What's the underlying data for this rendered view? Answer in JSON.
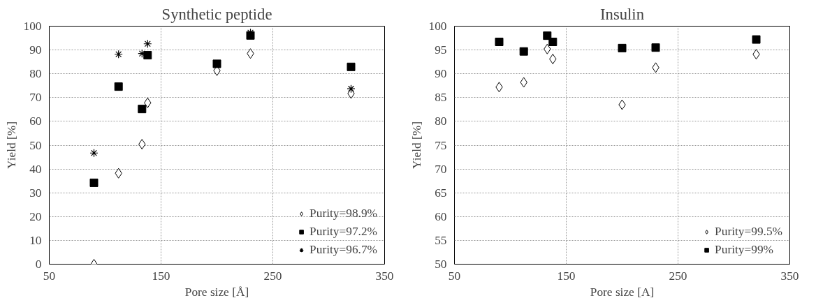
{
  "chart_data": [
    {
      "type": "scatter",
      "title": "Synthetic peptide",
      "xlabel": "Pore size [Å]",
      "ylabel": "Yield [%]",
      "x": [
        90,
        112,
        133,
        138,
        200,
        230,
        320
      ],
      "xlim": [
        50,
        350
      ],
      "xticks": [
        50,
        150,
        250,
        350
      ],
      "ylim": [
        0,
        100
      ],
      "yticks": [
        0,
        10,
        20,
        30,
        40,
        50,
        60,
        70,
        80,
        90,
        100
      ],
      "grid": true,
      "legend": "bottom right",
      "series": [
        {
          "name": "Purity=98.9%",
          "color": "#000000",
          "marker": "diamond",
          "values": [
            0,
            38.2,
            50.4,
            67.8,
            81.3,
            88.5,
            71.7
          ]
        },
        {
          "name": "Purity=97.2%",
          "color": "#000000",
          "marker": "square",
          "values": [
            34.2,
            74.6,
            65.2,
            87.8,
            84.2,
            96.1,
            82.9
          ]
        },
        {
          "name": "Purity=96.7%",
          "color": "#000000",
          "marker": "cross",
          "values": [
            46.7,
            88.2,
            88.5,
            92.6,
            null,
            97.3,
            73.7
          ]
        }
      ]
    },
    {
      "type": "scatter",
      "title": "Insulin",
      "xlabel": "Pore size [A]",
      "ylabel": "Yield [%]",
      "x": [
        90,
        112,
        133,
        138,
        200,
        230,
        320
      ],
      "xlim": [
        50,
        350
      ],
      "xticks": [
        50,
        150,
        250,
        350
      ],
      "ylim": [
        50,
        100
      ],
      "yticks": [
        50,
        55,
        60,
        65,
        70,
        75,
        80,
        85,
        90,
        95,
        100
      ],
      "grid": true,
      "legend": "bottom right",
      "series": [
        {
          "name": "Purity=99.5%",
          "color": "#000000",
          "marker": "diamond",
          "values": [
            87.2,
            88.2,
            95.2,
            93.1,
            83.5,
            91.3,
            94.1
          ]
        },
        {
          "name": "Purity=99%",
          "color": "#000000",
          "marker": "square",
          "values": [
            96.7,
            94.7,
            98.0,
            96.7,
            95.4,
            95.5,
            97.2
          ]
        }
      ]
    }
  ]
}
